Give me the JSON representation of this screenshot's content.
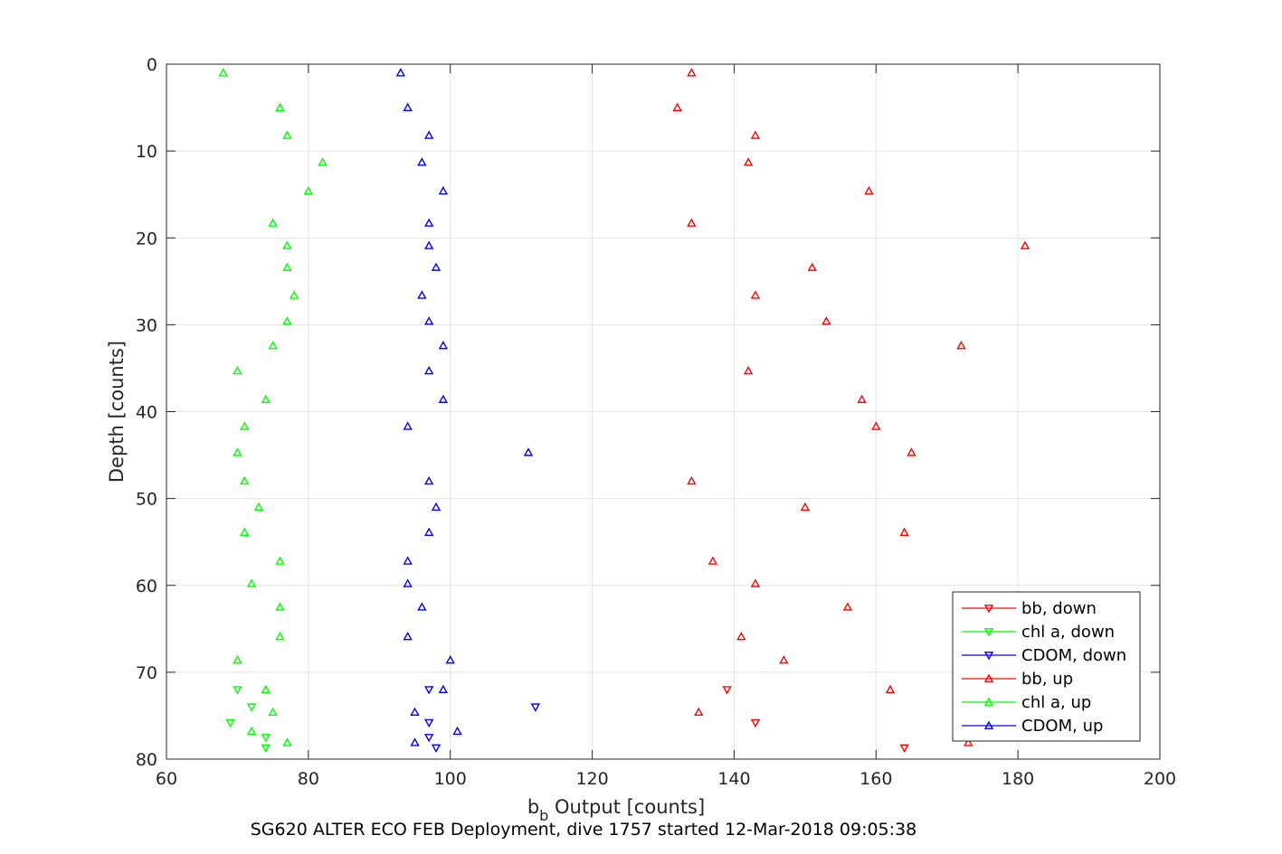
{
  "chart_data": {
    "type": "scatter",
    "title": "",
    "caption": "SG620 ALTER ECO FEB Deployment, dive 1757 started 12-Mar-2018 09:05:38",
    "xlabel_main": "b",
    "xlabel_sub": "b",
    "xlabel_rest": " Output [counts]",
    "ylabel": "Depth [counts]",
    "xlim": [
      60,
      200
    ],
    "ylim": [
      0,
      80
    ],
    "y_reversed": true,
    "grid": true,
    "x_ticks": [
      "60",
      "80",
      "100",
      "120",
      "140",
      "160",
      "180",
      "200"
    ],
    "y_ticks": [
      "0",
      "10",
      "20",
      "30",
      "40",
      "50",
      "60",
      "70",
      "80"
    ],
    "legend_position": "bottom-right",
    "series": [
      {
        "name": "bb, down",
        "color": "#ff0000",
        "marker": "down-triangle",
        "points": [
          [
            139,
            72.0
          ],
          [
            143,
            75.8
          ],
          [
            164,
            78.7
          ]
        ]
      },
      {
        "name": "chl a, down",
        "color": "#00ff00",
        "marker": "down-triangle",
        "points": [
          [
            70,
            72.0
          ],
          [
            72,
            74.0
          ],
          [
            69,
            75.8
          ],
          [
            74,
            77.5
          ],
          [
            74,
            78.7
          ]
        ]
      },
      {
        "name": "CDOM, down",
        "color": "#0000ff",
        "marker": "down-triangle",
        "points": [
          [
            97,
            72.0
          ],
          [
            112,
            74.0
          ],
          [
            97,
            75.8
          ],
          [
            97,
            77.5
          ],
          [
            98,
            78.7
          ]
        ]
      },
      {
        "name": "bb, up",
        "color": "#ff0000",
        "marker": "up-triangle",
        "points": [
          [
            134,
            1.0
          ],
          [
            132,
            5.0
          ],
          [
            143,
            8.2
          ],
          [
            142,
            11.3
          ],
          [
            159,
            14.6
          ],
          [
            134,
            18.3
          ],
          [
            181,
            20.9
          ],
          [
            151,
            23.4
          ],
          [
            143,
            26.6
          ],
          [
            153,
            29.6
          ],
          [
            172,
            32.4
          ],
          [
            142,
            35.3
          ],
          [
            158,
            38.6
          ],
          [
            160,
            41.7
          ],
          [
            165,
            44.7
          ],
          [
            134,
            48.0
          ],
          [
            150,
            51.0
          ],
          [
            164,
            53.9
          ],
          [
            137,
            57.2
          ],
          [
            143,
            59.8
          ],
          [
            156,
            62.5
          ],
          [
            141,
            65.9
          ],
          [
            147,
            68.6
          ],
          [
            162,
            72.0
          ],
          [
            135,
            74.6
          ],
          [
            173,
            78.1
          ]
        ]
      },
      {
        "name": "chl a, up",
        "color": "#00ff00",
        "marker": "up-triangle",
        "points": [
          [
            68,
            1.0
          ],
          [
            76,
            5.0
          ],
          [
            77,
            8.2
          ],
          [
            82,
            11.3
          ],
          [
            80,
            14.6
          ],
          [
            75,
            18.3
          ],
          [
            77,
            20.9
          ],
          [
            77,
            23.4
          ],
          [
            78,
            26.6
          ],
          [
            77,
            29.6
          ],
          [
            75,
            32.4
          ],
          [
            70,
            35.3
          ],
          [
            74,
            38.6
          ],
          [
            71,
            41.7
          ],
          [
            70,
            44.7
          ],
          [
            71,
            48.0
          ],
          [
            73,
            51.0
          ],
          [
            71,
            53.9
          ],
          [
            76,
            57.2
          ],
          [
            72,
            59.8
          ],
          [
            76,
            62.5
          ],
          [
            76,
            65.9
          ],
          [
            70,
            68.6
          ],
          [
            74,
            72.0
          ],
          [
            75,
            74.6
          ],
          [
            72,
            76.8
          ],
          [
            77,
            78.1
          ]
        ]
      },
      {
        "name": "CDOM, up",
        "color": "#0000ff",
        "marker": "up-triangle",
        "points": [
          [
            93,
            1.0
          ],
          [
            94,
            5.0
          ],
          [
            97,
            8.2
          ],
          [
            96,
            11.3
          ],
          [
            99,
            14.6
          ],
          [
            97,
            18.3
          ],
          [
            97,
            20.9
          ],
          [
            98,
            23.4
          ],
          [
            96,
            26.6
          ],
          [
            97,
            29.6
          ],
          [
            99,
            32.4
          ],
          [
            97,
            35.3
          ],
          [
            99,
            38.6
          ],
          [
            94,
            41.7
          ],
          [
            111,
            44.7
          ],
          [
            97,
            48.0
          ],
          [
            98,
            51.0
          ],
          [
            97,
            53.9
          ],
          [
            94,
            57.2
          ],
          [
            94,
            59.8
          ],
          [
            96,
            62.5
          ],
          [
            94,
            65.9
          ],
          [
            100,
            68.6
          ],
          [
            99,
            72.0
          ],
          [
            95,
            74.6
          ],
          [
            101,
            76.8
          ],
          [
            95,
            78.1
          ]
        ]
      }
    ]
  }
}
